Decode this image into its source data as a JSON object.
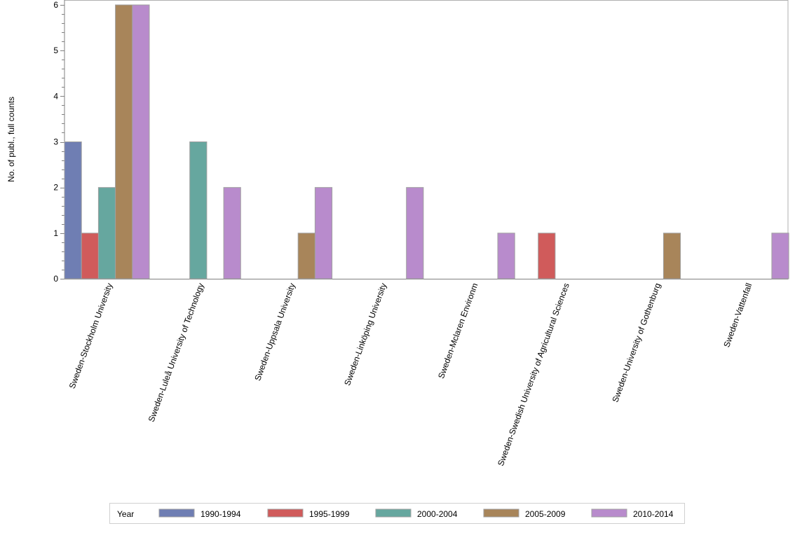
{
  "chart_data": {
    "type": "bar",
    "title": "",
    "xlabel": "",
    "ylabel": "No. of publ., full counts",
    "ylim": [
      0,
      6
    ],
    "yticks": [
      "0",
      "1",
      "2",
      "3",
      "4",
      "5",
      "6"
    ],
    "categories": [
      "Sweden-Stockholm University",
      "Sweden-Luleå University of Technology",
      "Sweden-Uppsala University",
      "Sweden-Linköping University",
      "Sweden-Mclaren Environm",
      "Sweden-Swedish University of Agricultural Sciences",
      "Sweden-University of Gothenburg",
      "Sweden-Vattenfall"
    ],
    "legend_title": "Year",
    "legend_position": "bottom",
    "series": [
      {
        "name": "1990-1994",
        "color": "#6f7eb3",
        "values": [
          3,
          0,
          0,
          0,
          0,
          0,
          0,
          0
        ]
      },
      {
        "name": "1995-1999",
        "color": "#d05b5b",
        "values": [
          1,
          0,
          0,
          0,
          0,
          1,
          0,
          0
        ]
      },
      {
        "name": "2000-2004",
        "color": "#66a79f",
        "values": [
          2,
          3,
          0,
          0,
          0,
          0,
          0,
          0
        ]
      },
      {
        "name": "2005-2009",
        "color": "#a8855a",
        "values": [
          6,
          0,
          1,
          0,
          0,
          0,
          1,
          0
        ]
      },
      {
        "name": "2010-2014",
        "color": "#b88bcc",
        "values": [
          6,
          2,
          2,
          2,
          1,
          0,
          0,
          1
        ]
      }
    ]
  }
}
